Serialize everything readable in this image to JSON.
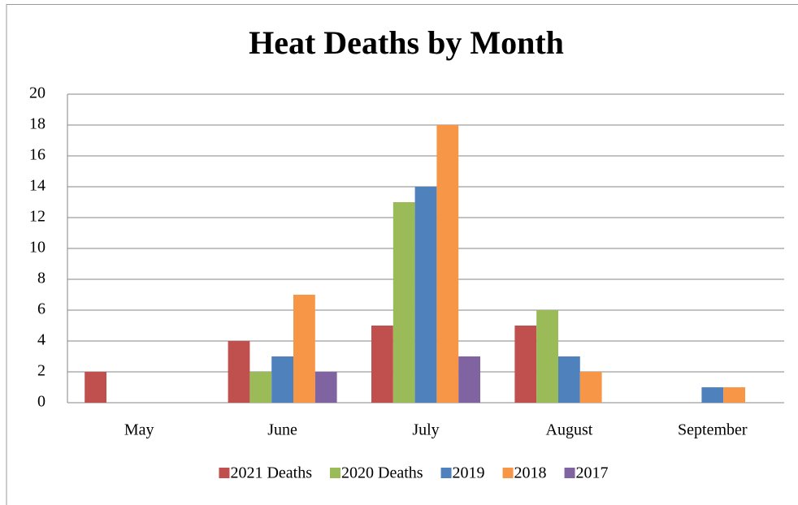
{
  "chart_data": {
    "type": "bar",
    "title": "Heat Deaths by Month",
    "categories": [
      "May",
      "June",
      "July",
      "August",
      "September"
    ],
    "series": [
      {
        "name": "2021 Deaths",
        "color": "#c0504d",
        "values": [
          2,
          4,
          5,
          5,
          0
        ]
      },
      {
        "name": "2020 Deaths",
        "color": "#9bbb59",
        "values": [
          0,
          2,
          13,
          6,
          0
        ]
      },
      {
        "name": "2019",
        "color": "#4f81bd",
        "values": [
          0,
          3,
          14,
          3,
          1
        ]
      },
      {
        "name": "2018",
        "color": "#f79646",
        "values": [
          0,
          7,
          18,
          2,
          1
        ]
      },
      {
        "name": "2017",
        "color": "#8064a2",
        "values": [
          0,
          2,
          3,
          0,
          0
        ]
      }
    ],
    "ylim": [
      0,
      20
    ],
    "yticks": [
      0,
      2,
      4,
      6,
      8,
      10,
      12,
      14,
      16,
      18,
      20
    ],
    "grid": true,
    "legend": "bottom"
  }
}
